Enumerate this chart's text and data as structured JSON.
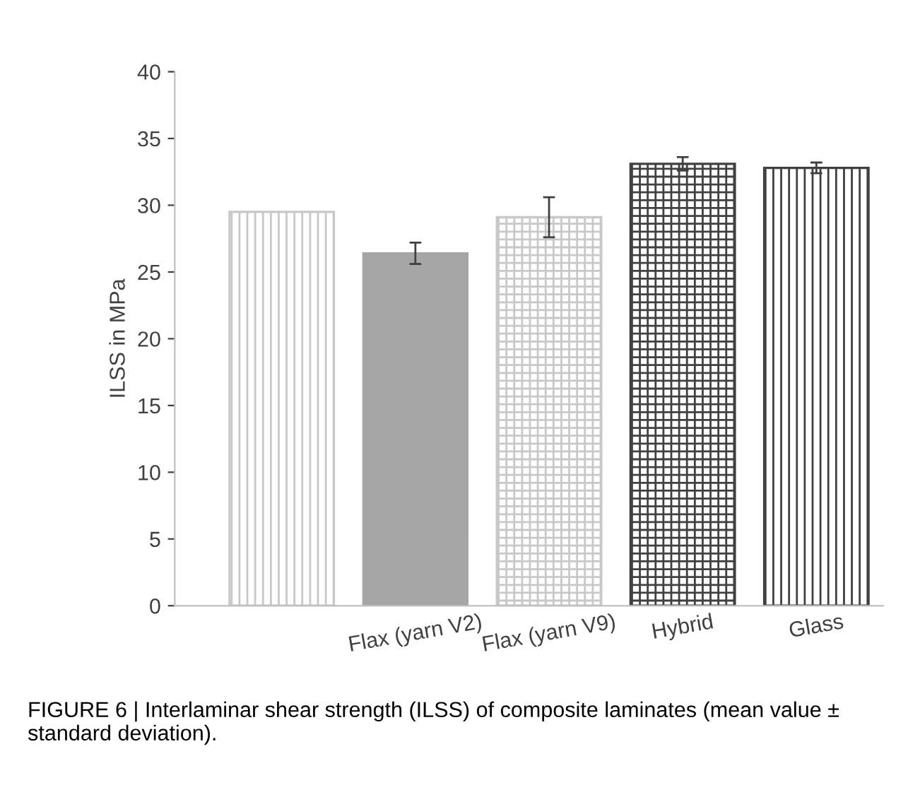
{
  "chart_data": {
    "type": "bar",
    "ylabel": "ILSS in MPa",
    "categories": [
      null,
      "Flax (yarn V2)",
      "Flax (yarn V9)",
      "Hybrid",
      "Glass"
    ],
    "values": [
      29.5,
      26.4,
      29.1,
      33.1,
      32.8
    ],
    "errors": [
      null,
      0.8,
      1.5,
      0.5,
      0.4
    ],
    "colors": [
      "#c8c8c8",
      "#a6a6a6",
      "#c8c8c8",
      "#404040",
      "#404040"
    ],
    "ylim": [
      0,
      40
    ],
    "yticks": [
      0,
      5,
      10,
      15,
      20,
      25,
      30,
      35,
      40
    ],
    "grid": false,
    "annotations": [
      "FIGURE 6 | Interlaminar shear strength (ILSS) of composite laminates (mean value ± standard deviation)."
    ]
  }
}
